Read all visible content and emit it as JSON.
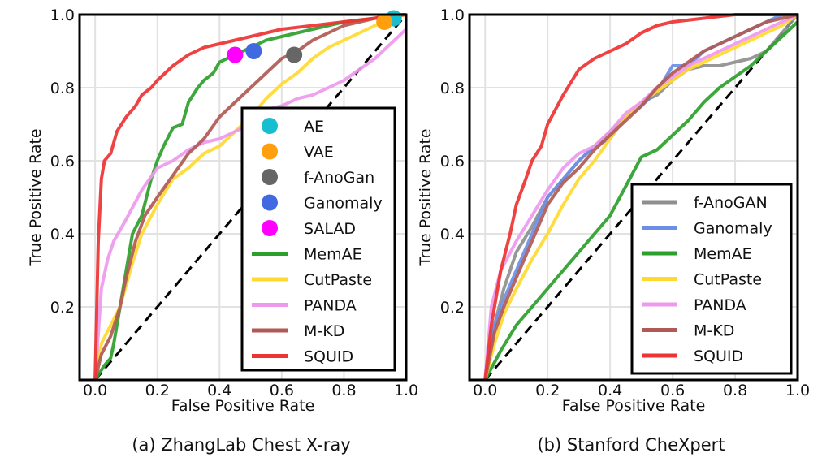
{
  "chart_data": [
    {
      "type": "line",
      "caption": "(a) ZhangLab Chest X-ray",
      "xlabel": "False Positive Rate",
      "ylabel": "True Positive Rate",
      "xlim": [
        -0.05,
        1.0
      ],
      "ylim": [
        0.0,
        1.0
      ],
      "xticks": [
        "0.0",
        "0.2",
        "0.4",
        "0.6",
        "0.8",
        "1.0"
      ],
      "yticks": [
        "0.2",
        "0.4",
        "0.6",
        "0.8",
        "1.0"
      ],
      "grid": true,
      "legend_position": "lower-right",
      "diagonal": true,
      "points": [
        {
          "name": "AE",
          "color": "#17becf",
          "x": 0.96,
          "y": 0.99
        },
        {
          "name": "VAE",
          "color": "#ff9f0e",
          "x": 0.93,
          "y": 0.98
        },
        {
          "name": "f-AnoGan",
          "color": "#666666",
          "x": 0.64,
          "y": 0.89
        },
        {
          "name": "Ganomaly",
          "color": "#4169e1",
          "x": 0.51,
          "y": 0.9
        },
        {
          "name": "SALAD",
          "color": "#ff00ff",
          "x": 0.45,
          "y": 0.89
        }
      ],
      "series": [
        {
          "name": "MemAE",
          "color": "#2ca02c",
          "x": [
            0,
            0.03,
            0.05,
            0.06,
            0.08,
            0.1,
            0.12,
            0.15,
            0.18,
            0.2,
            0.22,
            0.25,
            0.28,
            0.3,
            0.33,
            0.35,
            0.38,
            0.4,
            0.45,
            0.5,
            0.55,
            0.6,
            0.7,
            0.8,
            0.9,
            1.0
          ],
          "y": [
            0,
            0.04,
            0.06,
            0.1,
            0.2,
            0.3,
            0.4,
            0.45,
            0.55,
            0.6,
            0.64,
            0.69,
            0.7,
            0.76,
            0.8,
            0.82,
            0.84,
            0.87,
            0.89,
            0.91,
            0.93,
            0.94,
            0.96,
            0.98,
            0.99,
            1.0
          ]
        },
        {
          "name": "CutPaste",
          "color": "#ffd92f",
          "x": [
            0,
            0.02,
            0.05,
            0.08,
            0.1,
            0.12,
            0.15,
            0.2,
            0.25,
            0.3,
            0.35,
            0.4,
            0.45,
            0.5,
            0.55,
            0.6,
            0.65,
            0.7,
            0.75,
            0.8,
            0.85,
            0.9,
            0.95,
            1.0
          ],
          "y": [
            0,
            0.1,
            0.15,
            0.2,
            0.26,
            0.32,
            0.4,
            0.48,
            0.55,
            0.58,
            0.62,
            0.64,
            0.68,
            0.72,
            0.77,
            0.81,
            0.84,
            0.88,
            0.91,
            0.93,
            0.95,
            0.97,
            0.99,
            1.0
          ]
        },
        {
          "name": "PANDA",
          "color": "#ee99ee",
          "x": [
            0,
            0.02,
            0.04,
            0.06,
            0.1,
            0.15,
            0.2,
            0.25,
            0.3,
            0.35,
            0.4,
            0.45,
            0.5,
            0.55,
            0.6,
            0.65,
            0.7,
            0.75,
            0.8,
            0.85,
            0.9,
            0.95,
            1.0
          ],
          "y": [
            0,
            0.25,
            0.33,
            0.38,
            0.44,
            0.52,
            0.58,
            0.6,
            0.63,
            0.65,
            0.66,
            0.68,
            0.7,
            0.74,
            0.75,
            0.77,
            0.78,
            0.8,
            0.82,
            0.85,
            0.88,
            0.92,
            0.96
          ]
        },
        {
          "name": "M-KD",
          "color": "#b05a55",
          "x": [
            0,
            0.02,
            0.05,
            0.08,
            0.1,
            0.13,
            0.16,
            0.2,
            0.25,
            0.3,
            0.35,
            0.4,
            0.45,
            0.5,
            0.55,
            0.6,
            0.65,
            0.7,
            0.75,
            0.8,
            0.85,
            0.9,
            0.95,
            1.0
          ],
          "y": [
            0,
            0.07,
            0.12,
            0.2,
            0.28,
            0.38,
            0.45,
            0.5,
            0.56,
            0.62,
            0.66,
            0.72,
            0.76,
            0.8,
            0.84,
            0.88,
            0.9,
            0.93,
            0.95,
            0.97,
            0.98,
            0.99,
            1.0,
            1.0
          ]
        },
        {
          "name": "SQUID",
          "color": "#ee3333",
          "x": [
            0,
            0.01,
            0.02,
            0.03,
            0.05,
            0.07,
            0.1,
            0.13,
            0.15,
            0.18,
            0.2,
            0.25,
            0.3,
            0.35,
            0.4,
            0.45,
            0.5,
            0.6,
            0.7,
            0.8,
            0.9,
            1.0
          ],
          "y": [
            0,
            0.38,
            0.55,
            0.6,
            0.62,
            0.68,
            0.72,
            0.75,
            0.78,
            0.8,
            0.82,
            0.86,
            0.89,
            0.91,
            0.92,
            0.93,
            0.94,
            0.96,
            0.97,
            0.98,
            0.99,
            1.0
          ]
        }
      ]
    },
    {
      "type": "line",
      "caption": "(b) Stanford CheXpert",
      "xlabel": "False Positive Rate",
      "ylabel": "True Positive Rate",
      "xlim": [
        -0.05,
        1.0
      ],
      "ylim": [
        0.0,
        1.0
      ],
      "xticks": [
        "0.0",
        "0.2",
        "0.4",
        "0.6",
        "0.8",
        "1.0"
      ],
      "yticks": [
        "0.2",
        "0.4",
        "0.6",
        "0.8",
        "1.0"
      ],
      "grid": true,
      "legend_position": "lower-right",
      "diagonal": true,
      "series": [
        {
          "name": "f-AnoGAN",
          "color": "#8f8f8f",
          "x": [
            0,
            0.03,
            0.06,
            0.1,
            0.15,
            0.2,
            0.25,
            0.3,
            0.35,
            0.4,
            0.45,
            0.5,
            0.55,
            0.6,
            0.65,
            0.7,
            0.75,
            0.8,
            0.85,
            0.9,
            0.95,
            1.0
          ],
          "y": [
            0,
            0.15,
            0.25,
            0.35,
            0.42,
            0.5,
            0.55,
            0.6,
            0.64,
            0.68,
            0.72,
            0.76,
            0.78,
            0.82,
            0.85,
            0.86,
            0.86,
            0.87,
            0.88,
            0.9,
            0.95,
            1.0
          ]
        },
        {
          "name": "Ganomaly",
          "color": "#6b8fe6",
          "x": [
            0,
            0.03,
            0.06,
            0.1,
            0.15,
            0.2,
            0.25,
            0.3,
            0.35,
            0.4,
            0.45,
            0.5,
            0.55,
            0.6,
            0.65,
            0.7,
            0.75,
            0.8,
            0.85,
            0.9,
            0.95,
            1.0
          ],
          "y": [
            0,
            0.15,
            0.22,
            0.3,
            0.4,
            0.5,
            0.55,
            0.6,
            0.64,
            0.66,
            0.72,
            0.75,
            0.79,
            0.86,
            0.86,
            0.9,
            0.92,
            0.94,
            0.96,
            0.98,
            1.0,
            1.0
          ]
        },
        {
          "name": "MemAE",
          "color": "#2ca02c",
          "x": [
            0,
            0.05,
            0.1,
            0.15,
            0.2,
            0.25,
            0.3,
            0.35,
            0.4,
            0.45,
            0.5,
            0.55,
            0.6,
            0.65,
            0.7,
            0.75,
            0.8,
            0.85,
            0.9,
            0.95,
            1.0
          ],
          "y": [
            0,
            0.08,
            0.15,
            0.2,
            0.25,
            0.3,
            0.35,
            0.4,
            0.45,
            0.53,
            0.61,
            0.63,
            0.67,
            0.71,
            0.76,
            0.8,
            0.83,
            0.86,
            0.9,
            0.94,
            0.98
          ]
        },
        {
          "name": "CutPaste",
          "color": "#ffd92f",
          "x": [
            0,
            0.03,
            0.06,
            0.1,
            0.15,
            0.2,
            0.25,
            0.3,
            0.35,
            0.4,
            0.45,
            0.5,
            0.55,
            0.6,
            0.65,
            0.7,
            0.75,
            0.8,
            0.85,
            0.9,
            0.95,
            1.0
          ],
          "y": [
            0,
            0.1,
            0.18,
            0.25,
            0.33,
            0.4,
            0.48,
            0.55,
            0.6,
            0.66,
            0.72,
            0.76,
            0.79,
            0.82,
            0.85,
            0.87,
            0.89,
            0.91,
            0.93,
            0.95,
            0.97,
            1.0
          ]
        },
        {
          "name": "PANDA",
          "color": "#ee99ee",
          "x": [
            0,
            0.02,
            0.05,
            0.1,
            0.15,
            0.2,
            0.25,
            0.3,
            0.35,
            0.4,
            0.45,
            0.5,
            0.55,
            0.6,
            0.65,
            0.7,
            0.75,
            0.8,
            0.85,
            0.9,
            0.95,
            1.0
          ],
          "y": [
            0,
            0.2,
            0.3,
            0.38,
            0.45,
            0.52,
            0.58,
            0.62,
            0.64,
            0.68,
            0.73,
            0.76,
            0.8,
            0.83,
            0.86,
            0.88,
            0.9,
            0.92,
            0.94,
            0.96,
            0.98,
            1.0
          ]
        },
        {
          "name": "M-KD",
          "color": "#b05a55",
          "x": [
            0,
            0.03,
            0.06,
            0.1,
            0.15,
            0.2,
            0.25,
            0.3,
            0.35,
            0.4,
            0.45,
            0.5,
            0.55,
            0.6,
            0.65,
            0.7,
            0.75,
            0.8,
            0.85,
            0.9,
            0.95,
            1.0
          ],
          "y": [
            0,
            0.13,
            0.2,
            0.28,
            0.38,
            0.48,
            0.54,
            0.58,
            0.63,
            0.67,
            0.71,
            0.75,
            0.8,
            0.84,
            0.87,
            0.9,
            0.92,
            0.94,
            0.96,
            0.98,
            0.99,
            1.0
          ]
        },
        {
          "name": "SQUID",
          "color": "#ee3333",
          "x": [
            0,
            0.02,
            0.05,
            0.08,
            0.1,
            0.13,
            0.15,
            0.18,
            0.2,
            0.25,
            0.3,
            0.35,
            0.4,
            0.45,
            0.5,
            0.55,
            0.6,
            0.7,
            0.8,
            0.9,
            1.0
          ],
          "y": [
            0,
            0.15,
            0.3,
            0.4,
            0.48,
            0.55,
            0.6,
            0.64,
            0.7,
            0.78,
            0.85,
            0.88,
            0.9,
            0.92,
            0.95,
            0.97,
            0.98,
            0.99,
            1.0,
            1.0,
            1.0
          ]
        }
      ]
    }
  ]
}
